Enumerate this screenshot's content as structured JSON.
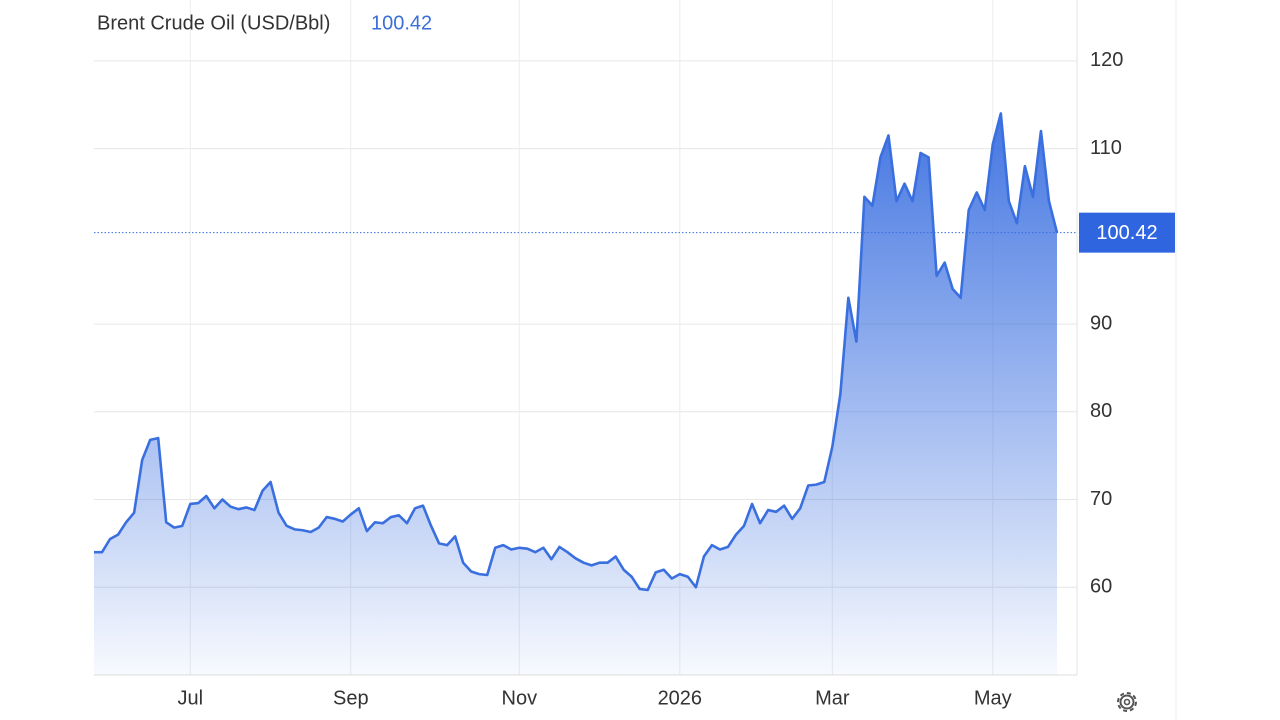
{
  "chart_data": {
    "type": "area",
    "title": "Brent Crude Oil (USD/Bbl)",
    "color": "#3a6fe0",
    "categories": [
      null,
      null,
      null,
      null,
      null,
      null,
      null,
      null,
      null,
      null,
      null,
      null,
      "Jul",
      null,
      null,
      null,
      null,
      null,
      null,
      null,
      null,
      null,
      null,
      null,
      null,
      null,
      null,
      null,
      null,
      null,
      null,
      null,
      "Sep",
      null,
      null,
      null,
      null,
      null,
      null,
      null,
      null,
      null,
      null,
      null,
      null,
      null,
      null,
      null,
      null,
      null,
      null,
      null,
      null,
      "Nov",
      null,
      null,
      null,
      null,
      null,
      null,
      null,
      null,
      null,
      null,
      null,
      null,
      null,
      null,
      null,
      null,
      null,
      null,
      null,
      "2026",
      null,
      null,
      null,
      null,
      null,
      null,
      null,
      null,
      null,
      null,
      null,
      null,
      null,
      null,
      null,
      null,
      null,
      null,
      "Mar",
      null,
      null,
      null,
      null,
      null,
      null,
      null,
      null,
      null,
      null,
      null,
      null,
      null,
      null,
      null,
      null,
      null,
      null,
      null,
      "May",
      null,
      null,
      null,
      null,
      null,
      null,
      null,
      null
    ],
    "values": [
      64,
      64,
      65.5,
      66,
      67.4,
      68.5,
      74.5,
      76.8,
      77,
      67.4,
      66.8,
      67,
      69.5,
      69.6,
      70.4,
      69,
      70,
      69.2,
      68.9,
      69.1,
      68.8,
      71,
      72,
      68.5,
      67,
      66.6,
      66.5,
      66.3,
      66.8,
      68,
      67.8,
      67.5,
      68.3,
      69,
      66.4,
      67.4,
      67.3,
      68,
      68.2,
      67.3,
      69,
      69.3,
      67,
      65,
      64.8,
      65.8,
      62.8,
      61.8,
      61.5,
      61.4,
      64.5,
      64.8,
      64.3,
      64.5,
      64.4,
      64,
      64.5,
      63.2,
      64.6,
      64,
      63.3,
      62.8,
      62.5,
      62.8,
      62.8,
      63.5,
      62,
      61.2,
      59.8,
      59.7,
      61.7,
      62,
      61,
      61.5,
      61.2,
      60,
      63.5,
      64.8,
      64.3,
      64.6,
      66,
      67,
      69.5,
      67.3,
      68.8,
      68.6,
      69.3,
      67.8,
      69,
      71.6,
      71.7,
      72,
      76,
      82,
      93,
      88,
      104.5,
      103.5,
      109,
      111.5,
      104,
      106,
      104,
      109.5,
      109,
      95.5,
      97,
      94,
      93,
      103,
      105,
      103,
      110.5,
      114,
      104,
      101.5,
      108,
      104.5,
      112,
      104,
      100.42
    ],
    "ylim": [
      50,
      125
    ],
    "yticks": [
      60,
      70,
      80,
      90,
      110,
      120
    ],
    "grid": true
  }
}
